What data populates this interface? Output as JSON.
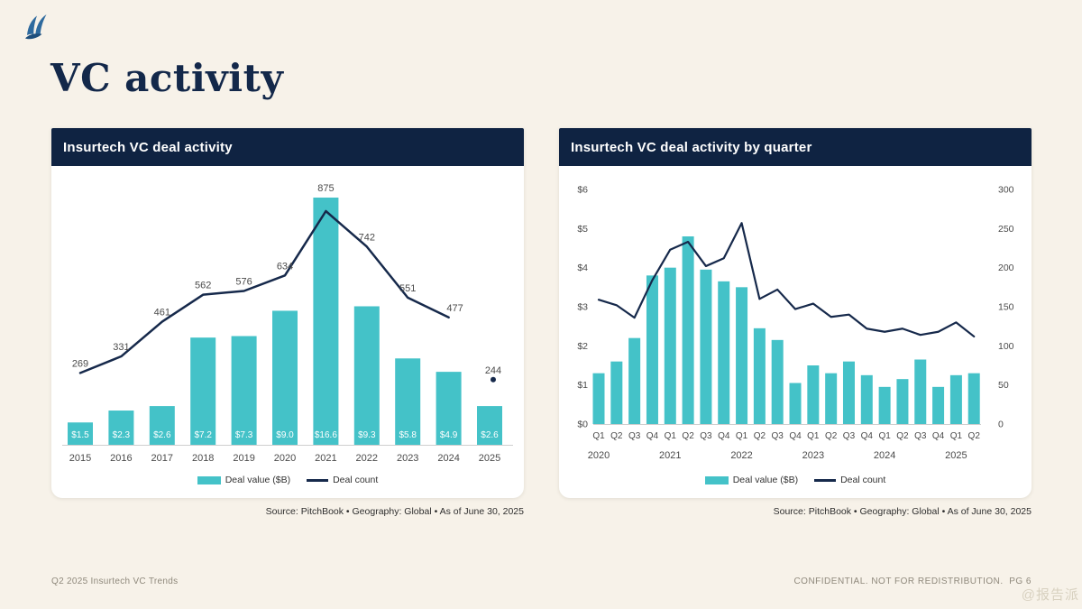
{
  "page": {
    "title": "VC activity",
    "footer_left": "Q2 2025 Insurtech VC Trends",
    "footer_right": "CONFIDENTIAL. NOT FOR REDISTRIBUTION.  PG 6",
    "watermark": "@报告派"
  },
  "colors": {
    "background": "#f7f2e9",
    "header_bar": "#0f2342",
    "bar_teal": "#44c2c8",
    "line_navy": "#16294b",
    "title_navy": "#13284a",
    "label_gray": "#4a4a4a",
    "baseline_gray": "#cfcfcf",
    "footer_gray": "#8f897c"
  },
  "chart_data": [
    {
      "type": "bar+line",
      "title": "Insurtech VC deal activity",
      "categories": [
        "2015",
        "2016",
        "2017",
        "2018",
        "2019",
        "2020",
        "2021",
        "2022",
        "2023",
        "2024",
        "2025"
      ],
      "series": [
        {
          "name": "Deal value ($B)",
          "type": "bar",
          "values": [
            1.5,
            2.3,
            2.6,
            7.2,
            7.3,
            9.0,
            16.6,
            9.3,
            5.8,
            4.9,
            2.6
          ],
          "data_labels": [
            "$1.5",
            "$2.3",
            "$2.6",
            "$7.2",
            "$7.3",
            "$9.0",
            "$16.6",
            "$9.3",
            "$5.8",
            "$4.9",
            "$2.6"
          ]
        },
        {
          "name": "Deal count",
          "type": "line",
          "values": [
            269,
            331,
            461,
            562,
            576,
            634,
            875,
            742,
            551,
            477,
            244
          ],
          "data_labels": [
            "269",
            "331",
            "461",
            "562",
            "576",
            "634",
            "875",
            "742",
            "551",
            "477",
            "244"
          ],
          "last_point_isolated_dot": true
        }
      ],
      "gridlines": false,
      "legend_position": "bottom",
      "source": "Source: PitchBook  •  Geography: Global  •  As of June 30, 2025"
    },
    {
      "type": "bar+line",
      "title": "Insurtech VC deal activity by quarter",
      "categories": [
        "Q1",
        "Q2",
        "Q3",
        "Q4",
        "Q1",
        "Q2",
        "Q3",
        "Q4",
        "Q1",
        "Q2",
        "Q3",
        "Q4",
        "Q1",
        "Q2",
        "Q3",
        "Q4",
        "Q1",
        "Q2",
        "Q3",
        "Q4",
        "Q1",
        "Q2"
      ],
      "year_labels": [
        "2020",
        "2021",
        "2022",
        "2023",
        "2024",
        "2025"
      ],
      "year_label_indices": [
        0,
        4,
        8,
        12,
        16,
        20
      ],
      "series": [
        {
          "name": "Deal value ($B)",
          "type": "bar",
          "axis": "left",
          "values": [
            1.3,
            1.6,
            2.2,
            3.8,
            4.0,
            4.8,
            3.95,
            3.65,
            3.5,
            2.45,
            2.15,
            1.05,
            1.5,
            1.3,
            1.6,
            1.25,
            0.95,
            1.15,
            1.65,
            0.95,
            1.25,
            1.3
          ]
        },
        {
          "name": "Deal count",
          "type": "line",
          "axis": "right",
          "values": [
            159,
            152,
            136,
            184,
            223,
            233,
            202,
            212,
            257,
            160,
            172,
            147,
            154,
            137,
            140,
            122,
            118,
            122,
            114,
            118,
            130,
            112
          ]
        }
      ],
      "y_axis_left": {
        "tick_labels": [
          "$0",
          "$1",
          "$2",
          "$3",
          "$4",
          "$5",
          "$6"
        ],
        "min": 0,
        "max": 6
      },
      "y_axis_right": {
        "tick_labels": [
          "0",
          "50",
          "100",
          "150",
          "200",
          "250",
          "300"
        ],
        "min": 0,
        "max": 300
      },
      "gridlines": false,
      "legend_position": "bottom",
      "source": "Source: PitchBook  •  Geography: Global  •  As of June 30, 2025"
    }
  ]
}
